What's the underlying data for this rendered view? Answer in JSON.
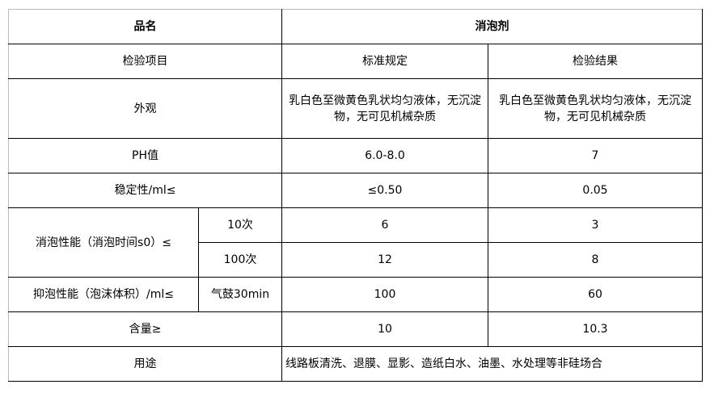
{
  "header": {
    "name_label": "品名",
    "product": "消泡剂"
  },
  "columns": {
    "item": "检验项目",
    "standard": "标准规定",
    "result": "检验结果"
  },
  "rows": {
    "appearance": {
      "label": "外观",
      "standard": "乳白色至微黄色乳状均匀液体，无沉淀物，无可见机械杂质",
      "result": "乳白色至微黄色乳状均匀液体，无沉淀物，无可见机械杂质"
    },
    "ph": {
      "label": "PH值",
      "standard": "6.0-8.0",
      "result": "7"
    },
    "stability": {
      "label": "稳定性/ml≤",
      "standard": "≤0.50",
      "result": "0.05"
    },
    "defoaming": {
      "label": "消泡性能（消泡时间s0）≤",
      "sub": [
        {
          "label": "10次",
          "standard": "6",
          "result": "3"
        },
        {
          "label": "100次",
          "standard": "12",
          "result": "8"
        }
      ]
    },
    "antifoam": {
      "label": "抑泡性能（泡沫体积）/ml≤",
      "sub_label": "气鼓30min",
      "standard": "100",
      "result": "60"
    },
    "content": {
      "label": "含量≥",
      "standard": "10",
      "result": "10.3"
    },
    "usage": {
      "label": "用途",
      "value": "线路板清洗、退膜、显影、造纸白水、油墨、水处理等非硅场合"
    }
  }
}
